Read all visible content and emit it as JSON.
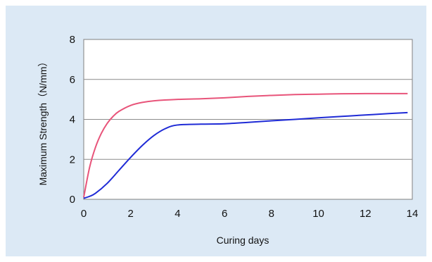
{
  "chart_data": {
    "type": "line",
    "title": "",
    "xlabel": "Curing days",
    "ylabel": "Maximum Strength（N/mm）",
    "xlim": [
      0,
      14
    ],
    "ylim": [
      0,
      8
    ],
    "x_ticks": [
      0,
      2,
      4,
      6,
      8,
      10,
      12,
      14
    ],
    "y_ticks": [
      0,
      2,
      4,
      6,
      8
    ],
    "grid": "horizontal",
    "legend": "none",
    "series": [
      {
        "color": "#e8547a",
        "x": [
          0,
          0.25,
          0.5,
          0.75,
          1,
          1.25,
          1.5,
          2,
          2.5,
          3,
          4,
          5,
          6,
          7,
          8,
          9,
          10,
          11,
          12,
          13,
          13.8
        ],
        "y": [
          0.1,
          1.6,
          2.6,
          3.3,
          3.8,
          4.15,
          4.4,
          4.7,
          4.85,
          4.93,
          5.0,
          5.03,
          5.08,
          5.15,
          5.2,
          5.24,
          5.26,
          5.28,
          5.29,
          5.29,
          5.29
        ]
      },
      {
        "color": "#1f2bd6",
        "x": [
          0,
          0.25,
          0.5,
          1,
          1.5,
          2,
          2.5,
          3,
          3.5,
          4,
          5,
          6,
          7,
          8,
          9,
          10,
          11,
          12,
          13,
          13.8
        ],
        "y": [
          0.05,
          0.15,
          0.3,
          0.8,
          1.45,
          2.1,
          2.7,
          3.2,
          3.55,
          3.72,
          3.76,
          3.78,
          3.85,
          3.93,
          4.0,
          4.08,
          4.15,
          4.22,
          4.29,
          4.34
        ]
      }
    ]
  }
}
